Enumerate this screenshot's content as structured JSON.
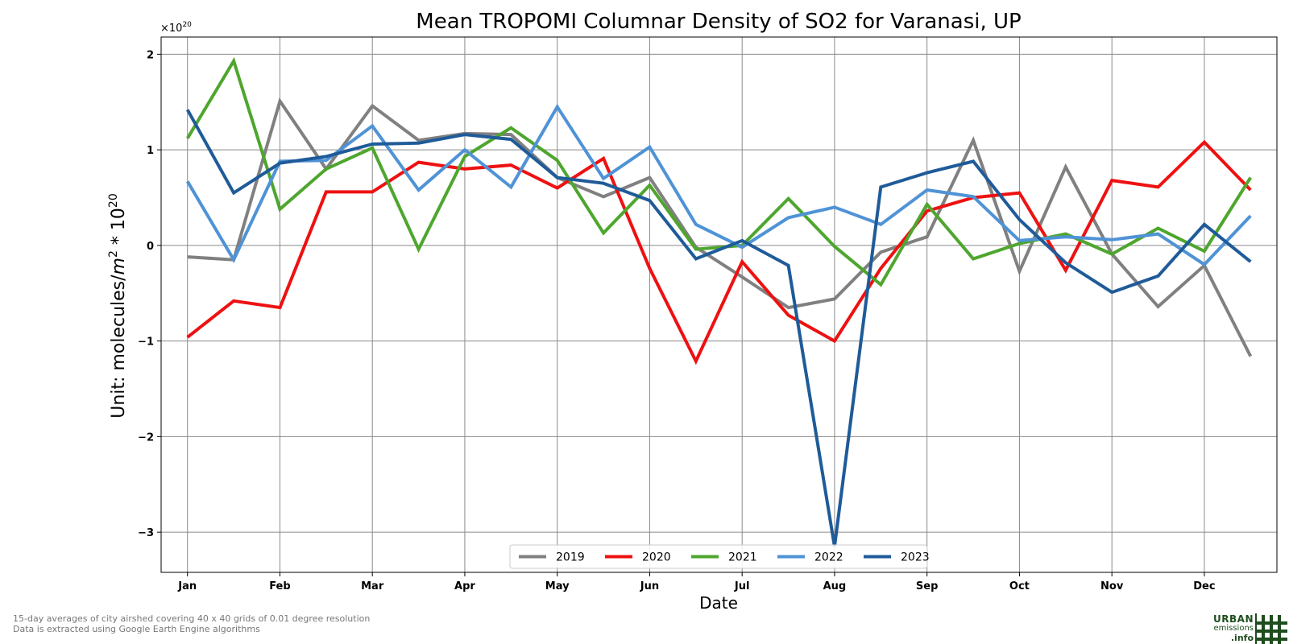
{
  "chart_data": {
    "type": "line",
    "title": "Mean TROPOMI Columnar Density of SO2 for Varanasi, UP",
    "xlabel": "Date",
    "ylabel": "Unit: molecules/m² * 10²⁰",
    "ylabel_parts": {
      "base": "Unit: molecules/",
      "m": "m",
      "m_sup": "2",
      "mid": " * 10",
      "sup": "20"
    },
    "y_offset_text": {
      "base": "×10",
      "exp": "20"
    },
    "x_tick_labels": [
      "Jan",
      "Feb",
      "Mar",
      "Apr",
      "May",
      "Jun",
      "Jul",
      "Aug",
      "Sep",
      "Oct",
      "Nov",
      "Dec"
    ],
    "y_ticks": [
      2,
      1,
      0,
      -1,
      -2,
      -3
    ],
    "y_tick_labels": [
      "2",
      "1",
      "0",
      "−1",
      "−2",
      "−3"
    ],
    "ylim": [
      -3.42,
      2.18
    ],
    "xlim": [
      -0.57,
      23.57
    ],
    "grid": true,
    "legend_position": "bottom-center",
    "x_index": [
      0,
      1,
      2,
      3,
      4,
      5,
      6,
      7,
      8,
      9,
      10,
      11,
      12,
      13,
      14,
      15,
      16,
      17,
      18,
      19,
      20,
      21,
      22,
      23
    ],
    "series": [
      {
        "name": "2019",
        "color": "#808080",
        "values": [
          -0.12,
          -0.15,
          1.51,
          0.8,
          1.46,
          1.1,
          1.17,
          1.16,
          0.71,
          0.51,
          0.71,
          -0.02,
          -0.33,
          -0.65,
          -0.56,
          -0.07,
          0.09,
          1.1,
          -0.27,
          0.82,
          -0.09,
          -0.64,
          -0.21,
          -1.16
        ]
      },
      {
        "name": "2020",
        "color": "#ee1111",
        "values": [
          -0.96,
          -0.58,
          -0.65,
          0.56,
          0.56,
          0.87,
          0.8,
          0.84,
          0.6,
          0.91,
          -0.24,
          -1.21,
          -0.17,
          -0.73,
          -1.0,
          -0.24,
          0.36,
          0.5,
          0.55,
          -0.26,
          0.68,
          0.61,
          1.08,
          0.58
        ]
      },
      {
        "name": "2021",
        "color": "#4ea62e",
        "values": [
          1.12,
          1.93,
          0.38,
          0.8,
          1.02,
          -0.04,
          0.93,
          1.23,
          0.89,
          0.13,
          0.63,
          -0.04,
          0.0,
          0.49,
          -0.01,
          -0.41,
          0.43,
          -0.14,
          0.02,
          0.12,
          -0.09,
          0.18,
          -0.06,
          0.71
        ]
      },
      {
        "name": "2022",
        "color": "#4f93d6",
        "values": [
          0.67,
          -0.15,
          0.88,
          0.89,
          1.25,
          0.58,
          1.0,
          0.61,
          1.45,
          0.7,
          1.03,
          0.22,
          -0.02,
          0.29,
          0.4,
          0.22,
          0.58,
          0.51,
          0.05,
          0.09,
          0.06,
          0.12,
          -0.2,
          0.31
        ]
      },
      {
        "name": "2023",
        "color": "#1f5b99",
        "values": [
          1.42,
          0.55,
          0.86,
          0.93,
          1.06,
          1.07,
          1.16,
          1.11,
          0.71,
          0.65,
          0.47,
          -0.14,
          0.05,
          -0.21,
          -3.15,
          0.61,
          0.76,
          0.88,
          0.27,
          -0.18,
          -0.49,
          -0.32,
          0.22,
          -0.17
        ]
      }
    ]
  },
  "footnotes": [
    "15-day averages of city airshed covering 40 x 40 grids of 0.01 degree resolution",
    "Data is extracted using Google Earth Engine algorithms"
  ],
  "logo": {
    "line1": "URBAN",
    "line2": "emissions",
    "line3": ".info",
    "color": "#1e4d1e"
  }
}
